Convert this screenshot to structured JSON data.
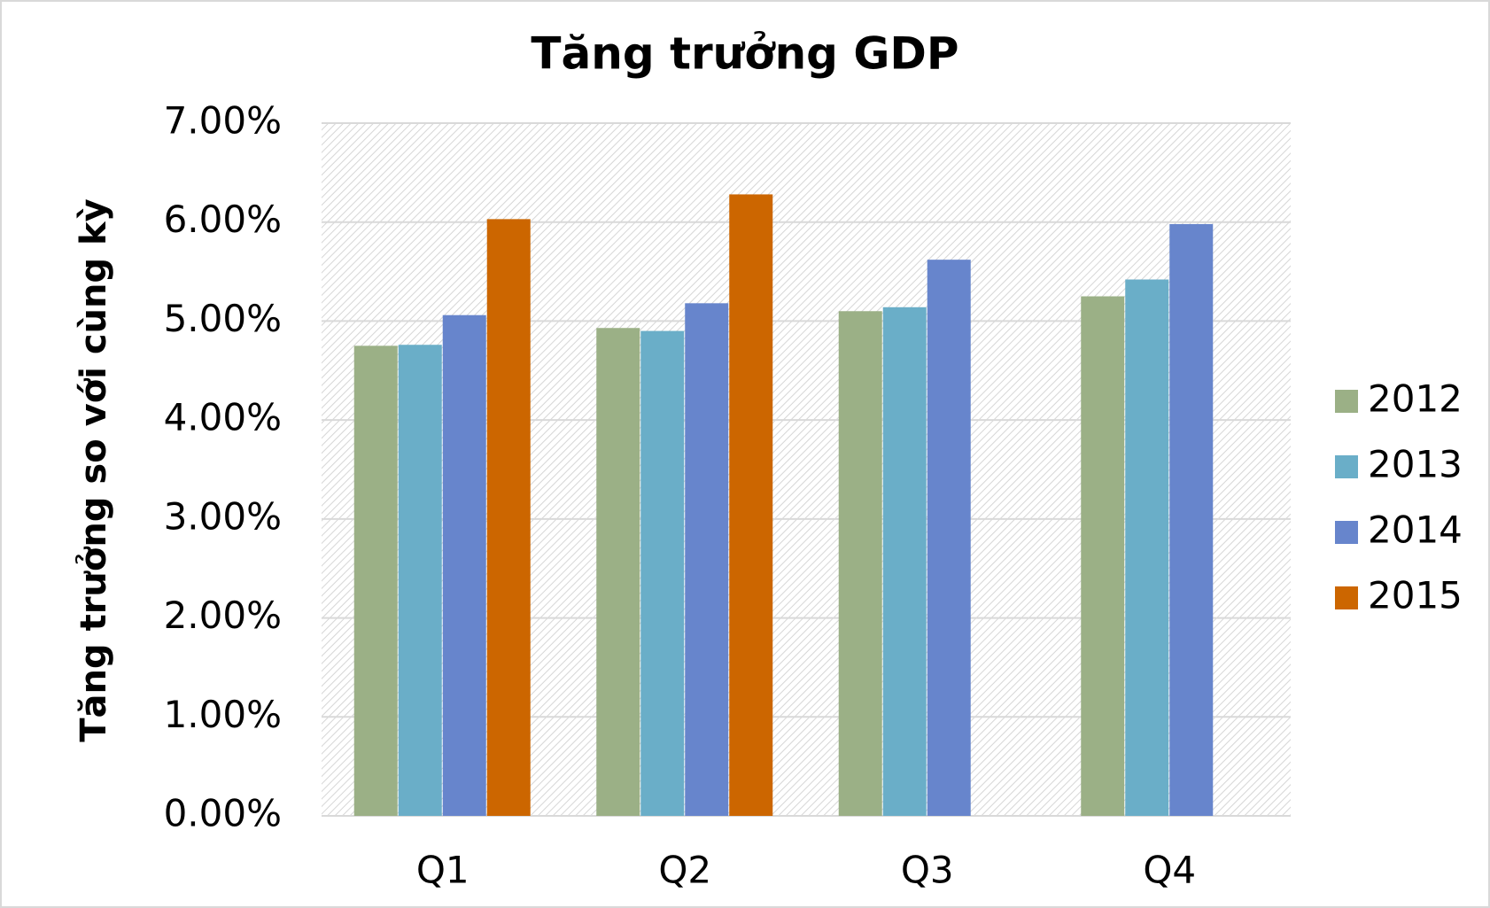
{
  "chart_data": {
    "type": "bar",
    "title": "Tăng trưởng GDP",
    "y_label": "Tăng trưởng so với cùng kỳ",
    "categories": [
      "Q1",
      "Q2",
      "Q3",
      "Q4"
    ],
    "series": [
      {
        "name": "2012",
        "color": "#9bb086",
        "values": [
          4.75,
          4.93,
          5.1,
          5.25
        ]
      },
      {
        "name": "2013",
        "color": "#6aaec8",
        "values": [
          4.76,
          4.9,
          5.14,
          5.42
        ]
      },
      {
        "name": "2014",
        "color": "#6785cc",
        "values": [
          5.06,
          5.18,
          5.62,
          5.98
        ]
      },
      {
        "name": "2015",
        "color": "#cc6600",
        "values": [
          6.03,
          6.28,
          null,
          null
        ]
      }
    ],
    "ylim": [
      0,
      7
    ],
    "yticks": [
      {
        "value": 0,
        "label": "0.00%"
      },
      {
        "value": 1,
        "label": "1.00%"
      },
      {
        "value": 2,
        "label": "2.00%"
      },
      {
        "value": 3,
        "label": "3.00%"
      },
      {
        "value": 4,
        "label": "4.00%"
      },
      {
        "value": 5,
        "label": "5.00%"
      },
      {
        "value": 6,
        "label": "6.00%"
      },
      {
        "value": 7,
        "label": "7.00%"
      }
    ],
    "grid": true,
    "legend": "right"
  }
}
